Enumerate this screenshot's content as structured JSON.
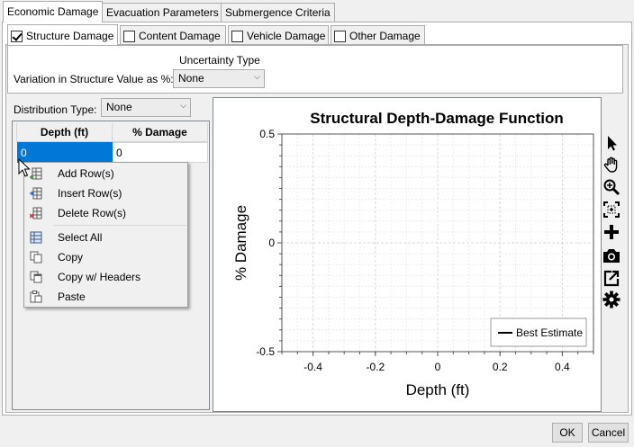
{
  "tabs": [
    {
      "label": "Economic Damage",
      "active": true
    },
    {
      "label": "Evacuation Parameters",
      "active": false
    },
    {
      "label": "Submergence Criteria",
      "active": false
    }
  ],
  "subtabs": [
    {
      "label": "Structure Damage",
      "checked": true
    },
    {
      "label": "Content Damage",
      "checked": false
    },
    {
      "label": "Vehicle Damage",
      "checked": false
    },
    {
      "label": "Other Damage",
      "checked": false
    }
  ],
  "uncertainty": {
    "header": "Uncertainty Type",
    "variation_label": "Variation in Structure Value as %:",
    "selected": "None"
  },
  "distribution": {
    "label": "Distribution Type:",
    "selected": "None"
  },
  "grid": {
    "columns": [
      "Depth (ft)",
      "% Damage"
    ],
    "rows": [
      [
        "0",
        "0"
      ]
    ]
  },
  "context_menu": {
    "items": [
      "Add Row(s)",
      "Insert Row(s)",
      "Delete Row(s)",
      "Select All",
      "Copy",
      "Copy w/ Headers",
      "Paste"
    ]
  },
  "chart_data": {
    "type": "line",
    "title": "Structural Depth-Damage Function",
    "xlabel": "Depth (ft)",
    "ylabel": "% Damage",
    "xlim": [
      -0.5,
      0.5
    ],
    "ylim": [
      -0.5,
      0.5
    ],
    "xticks": [
      "-0.4",
      "-0.2",
      "0",
      "0.2",
      "0.4"
    ],
    "yticks": [
      "0.5",
      "0",
      "-0.5"
    ],
    "grid": true,
    "legend_position": "bottom-right",
    "series": [
      {
        "name": "Best Estimate",
        "x": [],
        "y": []
      }
    ]
  },
  "toolbar": {
    "icons": [
      "pointer-icon",
      "pan-hand-icon",
      "zoom-icon",
      "zoom-to-fit-icon",
      "add-point-icon",
      "camera-icon",
      "export-icon",
      "settings-gear-icon"
    ]
  },
  "buttons": {
    "ok": "OK",
    "cancel": "Cancel"
  }
}
